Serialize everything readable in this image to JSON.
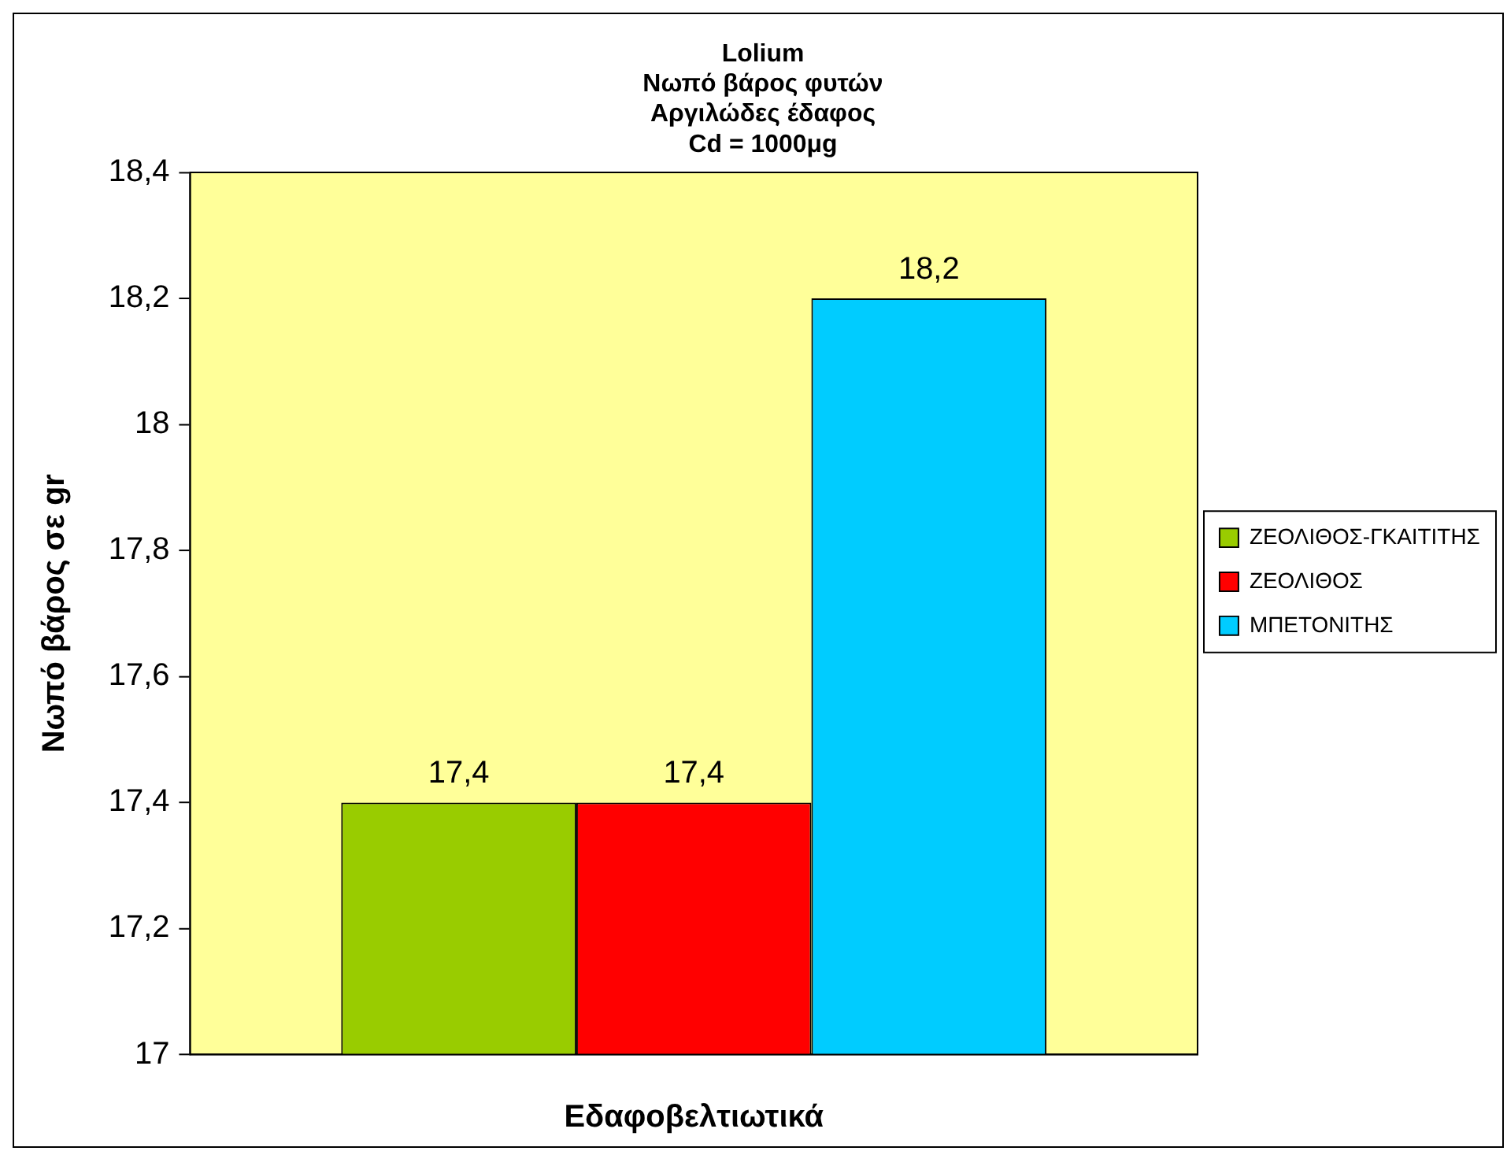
{
  "chart_data": {
    "type": "bar",
    "title": "Lolium\nΝωπό βάρος φυτών\nΑργιλώδες έδαφος\nCd = 1000μg",
    "xlabel": "Εδαφοβελτιωτικά",
    "ylabel": "Νωπό βάρος σε gr",
    "categories": [
      null
    ],
    "series": [
      {
        "name": "ΖΕΟΛΙΘΟΣ-ΓΚΑΙΤΙΤΗΣ",
        "color": "#99cc00",
        "values": [
          17.4
        ],
        "value_labels": [
          "17,4"
        ]
      },
      {
        "name": "ΖΕΟΛΙΘΟΣ",
        "color": "#ff0000",
        "values": [
          17.4
        ],
        "value_labels": [
          "17,4"
        ]
      },
      {
        "name": "ΜΠΕΤΟΝΙΤΗΣ",
        "color": "#00ccff",
        "values": [
          18.2
        ],
        "value_labels": [
          "18,2"
        ]
      }
    ],
    "ylim": [
      17,
      18.4
    ],
    "yticks": [
      {
        "value": 17,
        "label": "17"
      },
      {
        "value": 17.2,
        "label": "17,2"
      },
      {
        "value": 17.4,
        "label": "17,4"
      },
      {
        "value": 17.6,
        "label": "17,6"
      },
      {
        "value": 17.8,
        "label": "17,8"
      },
      {
        "value": 18,
        "label": "18"
      },
      {
        "value": 18.2,
        "label": "18,2"
      },
      {
        "value": 18.4,
        "label": "18,4"
      }
    ],
    "grid": false,
    "legend": "right"
  }
}
